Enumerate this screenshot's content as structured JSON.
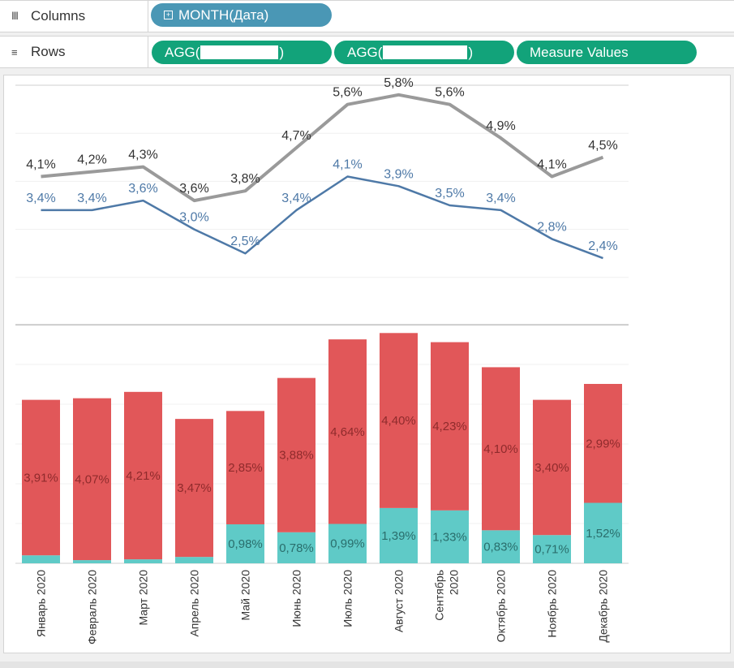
{
  "shelves": {
    "columns": {
      "label": "Columns",
      "pill": "MONTH(Дата)"
    },
    "rows": {
      "label": "Rows",
      "pill1_prefix": "AGG(",
      "pill1_suffix": ")",
      "pill2_prefix": "AGG(",
      "pill2_suffix": ")",
      "pill3": "Measure Values"
    }
  },
  "colors": {
    "line_gray": "#9a9a9a",
    "line_blue": "#4e79a7",
    "bar_red": "#e15759",
    "bar_teal": "#5fcac7",
    "pill_blue": "#4a97b5",
    "pill_green": "#12a37a"
  },
  "chart_data": [
    {
      "type": "line",
      "categories": [
        "Январь 2020",
        "Февраль 2020",
        "Март 2020",
        "Апрель 2020",
        "Май 2020",
        "Июнь 2020",
        "Июль 2020",
        "Август 2020",
        "Сентябрь 2020",
        "Октябрь 2020",
        "Ноябрь 2020",
        "Декабрь 2020"
      ],
      "series": [
        {
          "values": [
            4.1,
            4.2,
            4.3,
            3.6,
            3.8,
            4.7,
            5.6,
            5.8,
            5.6,
            4.9,
            4.1,
            4.5
          ],
          "labels": [
            "4,1%",
            "4,2%",
            "4,3%",
            "3,6%",
            "3,8%",
            "4,7%",
            "5,6%",
            "5,8%",
            "5,6%",
            "4,9%",
            "4,1%",
            "4,5%"
          ]
        },
        {
          "values": [
            3.4,
            3.4,
            3.6,
            3.0,
            2.5,
            3.4,
            4.1,
            3.9,
            3.5,
            3.4,
            2.8,
            2.4
          ],
          "labels": [
            "3,4%",
            "3,4%",
            "3,6%",
            "3,0%",
            "2,5%",
            "3,4%",
            "4,1%",
            "3,9%",
            "3,5%",
            "3,4%",
            "2,8%",
            "2,4%"
          ]
        }
      ]
    },
    {
      "type": "bar",
      "stacked": true,
      "categories": [
        "Январь 2020",
        "Февраль 2020",
        "Март 2020",
        "Апрель 2020",
        "Май 2020",
        "Июнь 2020",
        "Июль 2020",
        "Август 2020",
        "Сентябрь 2020",
        "Октябрь 2020",
        "Ноябрь 2020",
        "Декабрь 2020"
      ],
      "series": [
        {
          "values": [
            0.2,
            0.08,
            0.1,
            0.16,
            0.98,
            0.78,
            0.99,
            1.39,
            1.33,
            0.83,
            0.71,
            1.52
          ],
          "labels": [
            "",
            "",
            "",
            "",
            "0,98%",
            "0,78%",
            "0,99%",
            "1,39%",
            "1,33%",
            "0,83%",
            "0,71%",
            "1,52%"
          ]
        },
        {
          "values": [
            3.91,
            4.07,
            4.21,
            3.47,
            2.85,
            3.88,
            4.64,
            4.4,
            4.23,
            4.1,
            3.4,
            2.99
          ],
          "labels": [
            "3,91%",
            "4,07%",
            "4,21%",
            "3,47%",
            "2,85%",
            "3,88%",
            "4,64%",
            "4,40%",
            "4,23%",
            "4,10%",
            "3,40%",
            "2,99%"
          ]
        }
      ]
    }
  ]
}
